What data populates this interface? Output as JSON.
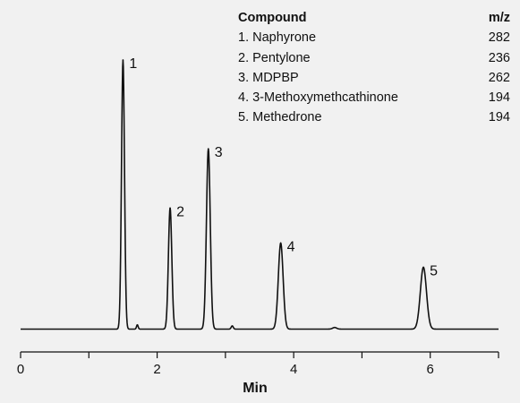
{
  "chart_data": {
    "type": "line",
    "xlabel": "Min",
    "xlim": [
      0,
      7
    ],
    "xticks": [
      0,
      1,
      2,
      3,
      4,
      5,
      6,
      7
    ],
    "xtick_labels": [
      {
        "value": 0,
        "label": "0"
      },
      {
        "value": 2,
        "label": "2"
      },
      {
        "value": 4,
        "label": "4"
      },
      {
        "value": 6,
        "label": "6"
      }
    ],
    "ylim": [
      0,
      100
    ],
    "peaks": [
      {
        "label": "1",
        "rt": 1.5,
        "height": 100,
        "width": 0.022
      },
      {
        "label": "2",
        "rt": 2.19,
        "height": 45,
        "width": 0.025
      },
      {
        "label": "3",
        "rt": 2.75,
        "height": 67,
        "width": 0.028
      },
      {
        "label": "4",
        "rt": 3.81,
        "height": 32,
        "width": 0.035
      },
      {
        "label": "5",
        "rt": 5.9,
        "height": 23,
        "width": 0.045
      }
    ],
    "minor_peaks": [
      {
        "rt": 1.71,
        "height": 1.6,
        "width": 0.012
      },
      {
        "rt": 3.1,
        "height": 1.2,
        "width": 0.015
      },
      {
        "rt": 4.6,
        "height": 0.6,
        "width": 0.03
      }
    ]
  },
  "legend": {
    "header_compound": "Compound",
    "header_mz": "m/z",
    "items": [
      {
        "name": "1. Naphyrone",
        "mz": "282"
      },
      {
        "name": "2. Pentylone",
        "mz": "236"
      },
      {
        "name": "3. MDPBP",
        "mz": "262"
      },
      {
        "name": "4. 3-Methoxymethcathinone",
        "mz": "194"
      },
      {
        "name": "5. Methedrone",
        "mz": "194"
      }
    ]
  },
  "colors": {
    "trace": "#111111",
    "axis": "#111111",
    "background": "#f1f1f1"
  }
}
